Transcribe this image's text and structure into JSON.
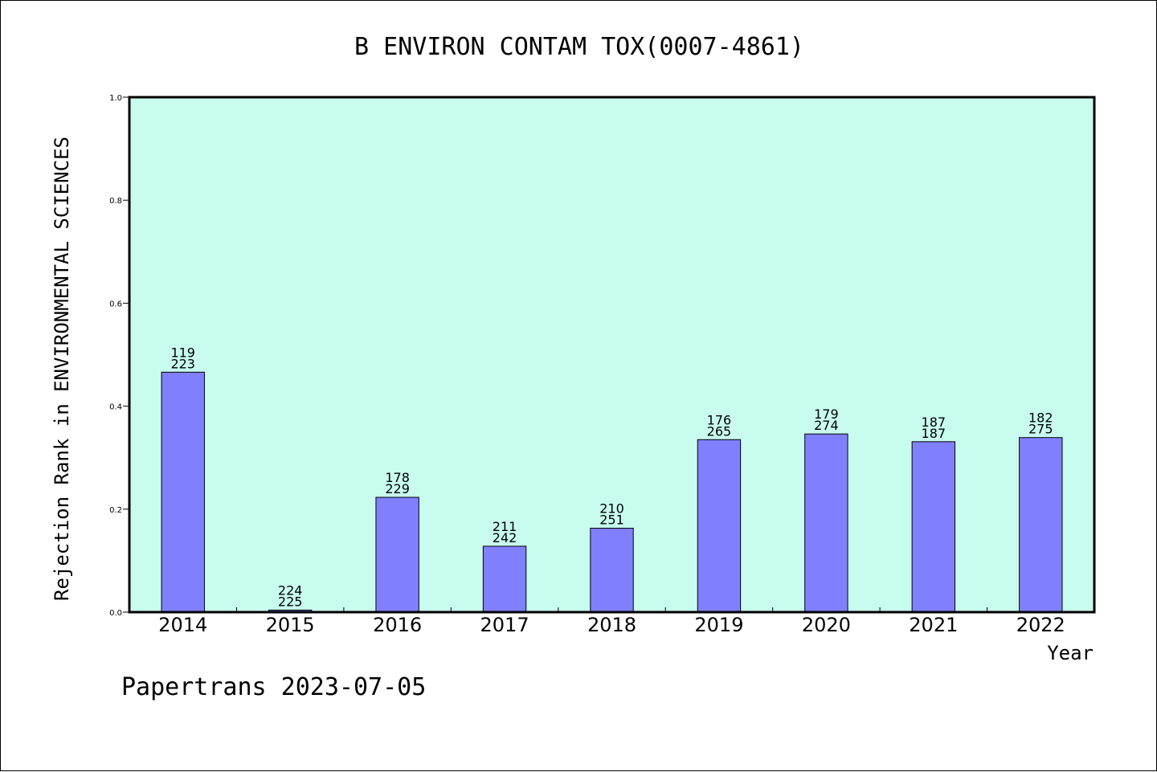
{
  "chart_data": {
    "type": "bar",
    "title": "B ENVIRON CONTAM TOX(0007-4861)",
    "xlabel": "Year",
    "ylabel": "Rejection Rank in ENVIRONMENTAL SCIENCES",
    "ylim": [
      0,
      1.0
    ],
    "yticks": [
      "0.0",
      "0.2",
      "0.4",
      "0.6",
      "0.8",
      "1.0"
    ],
    "categories": [
      "2014",
      "2015",
      "2016",
      "2017",
      "2018",
      "2019",
      "2020",
      "2021",
      "2022"
    ],
    "values": [
      0.466,
      0.004,
      0.223,
      0.128,
      0.163,
      0.335,
      0.346,
      0.331,
      0.339
    ],
    "bar_labels_top": [
      "119",
      "224",
      "178",
      "211",
      "210",
      "176",
      "179",
      "187",
      "182"
    ],
    "bar_labels_bottom": [
      "223",
      "225",
      "229",
      "242",
      "251",
      "265",
      "274",
      "187",
      "275"
    ],
    "grid": false,
    "colors": {
      "plot_background": "#c8fcee",
      "bar_fill": "#8080ff",
      "bar_stroke": "#000000"
    }
  },
  "footer": "Papertrans 2023-07-05"
}
